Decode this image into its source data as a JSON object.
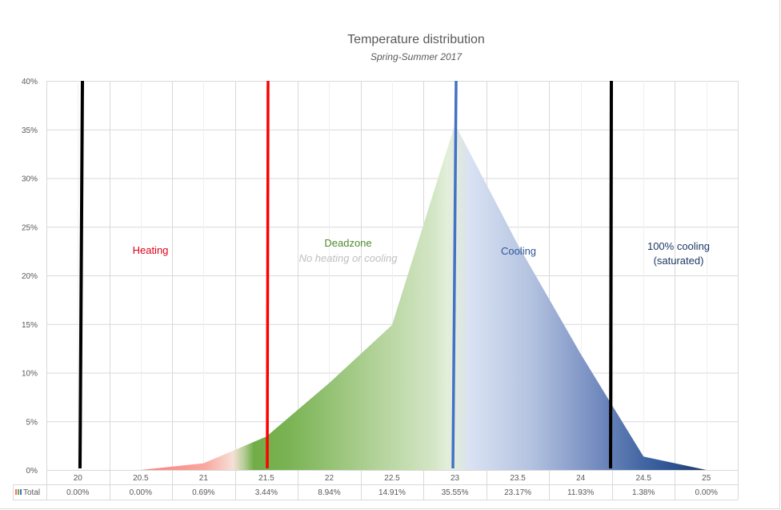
{
  "chart_data": {
    "type": "area",
    "title": "Temperature distribution",
    "subtitle": "Spring-Summer 2017",
    "xlabel": "",
    "ylabel": "",
    "categories": [
      "20",
      "20.5",
      "21",
      "21.5",
      "22",
      "22.5",
      "23",
      "23.5",
      "24",
      "24.5",
      "25"
    ],
    "series": [
      {
        "name": "Total",
        "values": [
          0.0,
          0.0,
          0.69,
          3.44,
          8.94,
          14.91,
          35.55,
          23.17,
          11.93,
          1.38,
          0.0
        ],
        "labels": [
          "0.00%",
          "0.00%",
          "0.69%",
          "3.44%",
          "8.94%",
          "14.91%",
          "35.55%",
          "23.17%",
          "11.93%",
          "1.38%",
          "0.00%"
        ]
      }
    ],
    "ylim": [
      0,
      40
    ],
    "yticks": [
      "0%",
      "5%",
      "10%",
      "15%",
      "20%",
      "25%",
      "30%",
      "35%",
      "40%"
    ],
    "grid": true,
    "legend_position": "data-table",
    "data_table": true,
    "vertical_markers": [
      {
        "name": "lower-limit",
        "x": 20.03,
        "color": "#000000"
      },
      {
        "name": "heating-setpoint",
        "x": 21.5,
        "color": "#ff0000"
      },
      {
        "name": "cooling-setpoint",
        "x": 23.0,
        "color": "#4472c4"
      },
      {
        "name": "cooling-saturation",
        "x": 24.2,
        "color": "#000000"
      }
    ],
    "annotations": [
      {
        "text": "Heating",
        "color": "#e0001a"
      },
      {
        "text": "Deadzone",
        "color": "#4e8a2c"
      },
      {
        "text": "No heating or cooling",
        "color": "#bfbfbf"
      },
      {
        "text": "Cooling",
        "color": "#2e5597"
      },
      {
        "text": "100% cooling (saturated)",
        "color": "#1f3764"
      }
    ],
    "gradient_colors": {
      "heating": "#ff6b6b",
      "deadzone_dark": "#70ad47",
      "deadzone_light": "#e2efda",
      "cooling_light": "#dae3f3",
      "cooling_dark": "#203864"
    }
  },
  "text": {
    "title": "Temperature distribution",
    "subtitle": "Spring-Summer 2017",
    "legend_label": "Total",
    "heating": "Heating",
    "deadzone": "Deadzone",
    "deadzone_sub": "No heating or cooling",
    "cooling": "Cooling",
    "saturated_line1": "100% cooling",
    "saturated_line2": "(saturated)"
  }
}
